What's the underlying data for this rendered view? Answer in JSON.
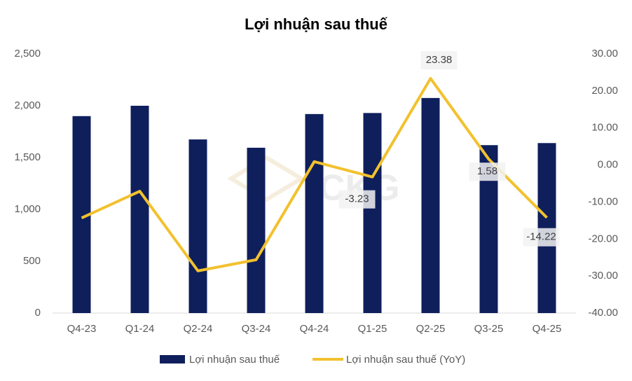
{
  "chart_data": {
    "type": "bar-line",
    "title": "Lợi nhuận sau thuế",
    "watermark": "CKG",
    "categories": [
      "Q4-23",
      "Q1-24",
      "Q2-24",
      "Q3-24",
      "Q4-24",
      "Q1-25",
      "Q2-25",
      "Q3-25",
      "Q4-25"
    ],
    "series": [
      {
        "name": "Lợi nhuận sau thuế",
        "type": "bar",
        "color": "#0f1f5c",
        "values": [
          1900,
          2000,
          1675,
          1595,
          1920,
          1930,
          2075,
          1620,
          1640
        ]
      },
      {
        "name": "Lợi nhuận sau thuế (YoY)",
        "type": "line",
        "axis": "y2",
        "color": "#f2c12e",
        "values": [
          -14.3,
          -7.1,
          -28.6,
          -25.6,
          0.9,
          -3.23,
          23.38,
          1.58,
          -14.22
        ],
        "value_labels": [
          null,
          null,
          null,
          null,
          null,
          "-3.23",
          "23.38",
          "1.58",
          "-14.22"
        ]
      }
    ],
    "ylim": [
      0,
      2500
    ],
    "yticks": [
      0,
      500,
      {
        "value": 1000,
        "label": "1,000"
      },
      {
        "value": 1500,
        "label": "1,500"
      },
      {
        "value": 2000,
        "label": "2,000"
      },
      {
        "value": 2500,
        "label": "2,500"
      }
    ],
    "y2lim": [
      -40,
      30
    ],
    "y2ticks": [
      {
        "value": -40,
        "label": "-40.00"
      },
      {
        "value": -30,
        "label": "-30.00"
      },
      {
        "value": -20,
        "label": "-20.00"
      },
      {
        "value": -10,
        "label": "-10.00"
      },
      {
        "value": 0,
        "label": "0.00"
      },
      {
        "value": 10,
        "label": "10.00"
      },
      {
        "value": 20,
        "label": "20.00"
      },
      {
        "value": 30,
        "label": "30.00"
      }
    ],
    "grid": false,
    "legend": "bottom"
  }
}
